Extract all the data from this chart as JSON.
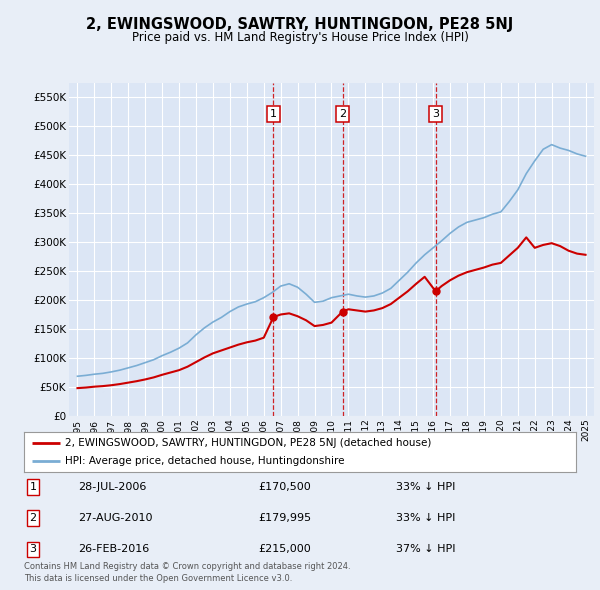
{
  "title": "2, EWINGSWOOD, SAWTRY, HUNTINGDON, PE28 5NJ",
  "subtitle": "Price paid vs. HM Land Registry's House Price Index (HPI)",
  "red_label": "2, EWINGSWOOD, SAWTRY, HUNTINGDON, PE28 5NJ (detached house)",
  "blue_label": "HPI: Average price, detached house, Huntingdonshire",
  "footer1": "Contains HM Land Registry data © Crown copyright and database right 2024.",
  "footer2": "This data is licensed under the Open Government Licence v3.0.",
  "sales": [
    {
      "num": 1,
      "date_label": "28-JUL-2006",
      "price_label": "£170,500",
      "hpi_label": "33% ↓ HPI",
      "year": 2006.57,
      "price": 170500
    },
    {
      "num": 2,
      "date_label": "27-AUG-2010",
      "price_label": "£179,995",
      "hpi_label": "33% ↓ HPI",
      "year": 2010.65,
      "price": 179995
    },
    {
      "num": 3,
      "date_label": "26-FEB-2016",
      "price_label": "£215,000",
      "hpi_label": "37% ↓ HPI",
      "year": 2016.15,
      "price": 215000
    }
  ],
  "ylim": [
    0,
    575000
  ],
  "yticks": [
    0,
    50000,
    100000,
    150000,
    200000,
    250000,
    300000,
    350000,
    400000,
    450000,
    500000,
    550000
  ],
  "xlim_start": 1994.5,
  "xlim_end": 2025.5,
  "background_color": "#e8eef7",
  "plot_bg": "#dce6f5",
  "grid_color": "#ffffff",
  "red_color": "#cc0000",
  "blue_color": "#7aadd4",
  "hpi_data": [
    [
      1995.0,
      68500
    ],
    [
      1995.5,
      70000
    ],
    [
      1996.0,
      72000
    ],
    [
      1996.5,
      73500
    ],
    [
      1997.0,
      76000
    ],
    [
      1997.5,
      79000
    ],
    [
      1998.0,
      83000
    ],
    [
      1998.5,
      87000
    ],
    [
      1999.0,
      92000
    ],
    [
      1999.5,
      97000
    ],
    [
      2000.0,
      104000
    ],
    [
      2000.5,
      110000
    ],
    [
      2001.0,
      117000
    ],
    [
      2001.5,
      126000
    ],
    [
      2002.0,
      140000
    ],
    [
      2002.5,
      152000
    ],
    [
      2003.0,
      162000
    ],
    [
      2003.5,
      170000
    ],
    [
      2004.0,
      180000
    ],
    [
      2004.5,
      188000
    ],
    [
      2005.0,
      193000
    ],
    [
      2005.5,
      197000
    ],
    [
      2006.0,
      204000
    ],
    [
      2006.5,
      213000
    ],
    [
      2007.0,
      224000
    ],
    [
      2007.5,
      228000
    ],
    [
      2008.0,
      222000
    ],
    [
      2008.5,
      210000
    ],
    [
      2009.0,
      196000
    ],
    [
      2009.5,
      198000
    ],
    [
      2010.0,
      204000
    ],
    [
      2010.5,
      207000
    ],
    [
      2011.0,
      210000
    ],
    [
      2011.5,
      207000
    ],
    [
      2012.0,
      205000
    ],
    [
      2012.5,
      207000
    ],
    [
      2013.0,
      212000
    ],
    [
      2013.5,
      220000
    ],
    [
      2014.0,
      234000
    ],
    [
      2014.5,
      248000
    ],
    [
      2015.0,
      264000
    ],
    [
      2015.5,
      278000
    ],
    [
      2016.0,
      290000
    ],
    [
      2016.5,
      302000
    ],
    [
      2017.0,
      315000
    ],
    [
      2017.5,
      326000
    ],
    [
      2018.0,
      334000
    ],
    [
      2018.5,
      338000
    ],
    [
      2019.0,
      342000
    ],
    [
      2019.5,
      348000
    ],
    [
      2020.0,
      352000
    ],
    [
      2020.5,
      370000
    ],
    [
      2021.0,
      390000
    ],
    [
      2021.5,
      418000
    ],
    [
      2022.0,
      440000
    ],
    [
      2022.5,
      460000
    ],
    [
      2023.0,
      468000
    ],
    [
      2023.5,
      462000
    ],
    [
      2024.0,
      458000
    ],
    [
      2024.5,
      452000
    ],
    [
      2025.0,
      448000
    ]
  ],
  "red_data": [
    [
      1995.0,
      48000
    ],
    [
      1995.5,
      49000
    ],
    [
      1996.0,
      50500
    ],
    [
      1996.5,
      51500
    ],
    [
      1997.0,
      53000
    ],
    [
      1997.5,
      55000
    ],
    [
      1998.0,
      57500
    ],
    [
      1998.5,
      60000
    ],
    [
      1999.0,
      63000
    ],
    [
      1999.5,
      66500
    ],
    [
      2000.0,
      71000
    ],
    [
      2000.5,
      75000
    ],
    [
      2001.0,
      79000
    ],
    [
      2001.5,
      85000
    ],
    [
      2002.0,
      93000
    ],
    [
      2002.5,
      101000
    ],
    [
      2003.0,
      108000
    ],
    [
      2003.5,
      113000
    ],
    [
      2004.0,
      118000
    ],
    [
      2004.5,
      123000
    ],
    [
      2005.0,
      127000
    ],
    [
      2005.5,
      130000
    ],
    [
      2006.0,
      135000
    ],
    [
      2006.57,
      170500
    ],
    [
      2007.0,
      175000
    ],
    [
      2007.5,
      177000
    ],
    [
      2008.0,
      172000
    ],
    [
      2008.5,
      165000
    ],
    [
      2009.0,
      155000
    ],
    [
      2009.5,
      157000
    ],
    [
      2010.0,
      161000
    ],
    [
      2010.65,
      179995
    ],
    [
      2011.0,
      184000
    ],
    [
      2011.5,
      182000
    ],
    [
      2012.0,
      180000
    ],
    [
      2012.5,
      182000
    ],
    [
      2013.0,
      186000
    ],
    [
      2013.5,
      193000
    ],
    [
      2014.0,
      204000
    ],
    [
      2014.5,
      215000
    ],
    [
      2015.0,
      228000
    ],
    [
      2015.5,
      240000
    ],
    [
      2016.15,
      215000
    ],
    [
      2016.5,
      224000
    ],
    [
      2017.0,
      234000
    ],
    [
      2017.5,
      242000
    ],
    [
      2018.0,
      248000
    ],
    [
      2018.5,
      252000
    ],
    [
      2019.0,
      256000
    ],
    [
      2019.5,
      261000
    ],
    [
      2020.0,
      264000
    ],
    [
      2020.5,
      277000
    ],
    [
      2021.0,
      290000
    ],
    [
      2021.5,
      308000
    ],
    [
      2022.0,
      290000
    ],
    [
      2022.5,
      295000
    ],
    [
      2023.0,
      298000
    ],
    [
      2023.5,
      293000
    ],
    [
      2024.0,
      285000
    ],
    [
      2024.5,
      280000
    ],
    [
      2025.0,
      278000
    ]
  ]
}
